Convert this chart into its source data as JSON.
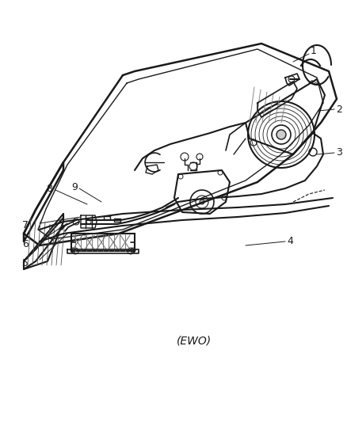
{
  "background_color": "#ffffff",
  "line_color": "#1a1a1a",
  "label_color": "#1a1a1a",
  "fig_width": 4.38,
  "fig_height": 5.33,
  "dpi": 100,
  "ewo_text": "(EWO)"
}
